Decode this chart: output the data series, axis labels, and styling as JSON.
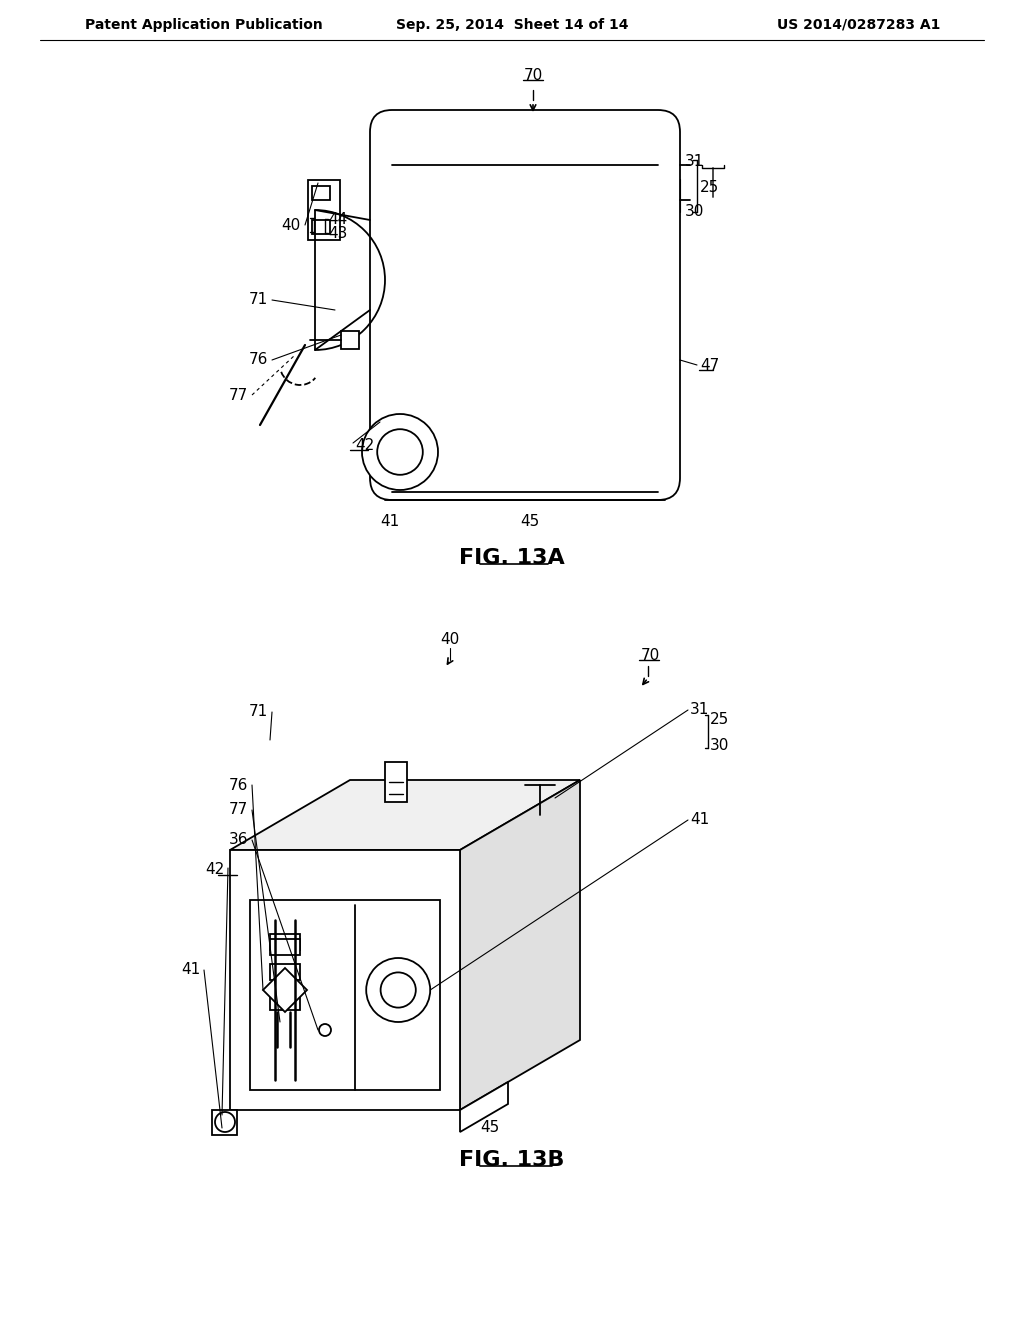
{
  "bg_color": "#ffffff",
  "line_color": "#000000",
  "header_left": "Patent Application Publication",
  "header_mid": "Sep. 25, 2014  Sheet 14 of 14",
  "header_right": "US 2014/0287283 A1",
  "fig13a_label": "FIG. 13A",
  "fig13b_label": "FIG. 13B",
  "header_fontsize": 10,
  "label_fontsize": 11,
  "caption_fontsize": 16,
  "ref_fontsize": 11
}
